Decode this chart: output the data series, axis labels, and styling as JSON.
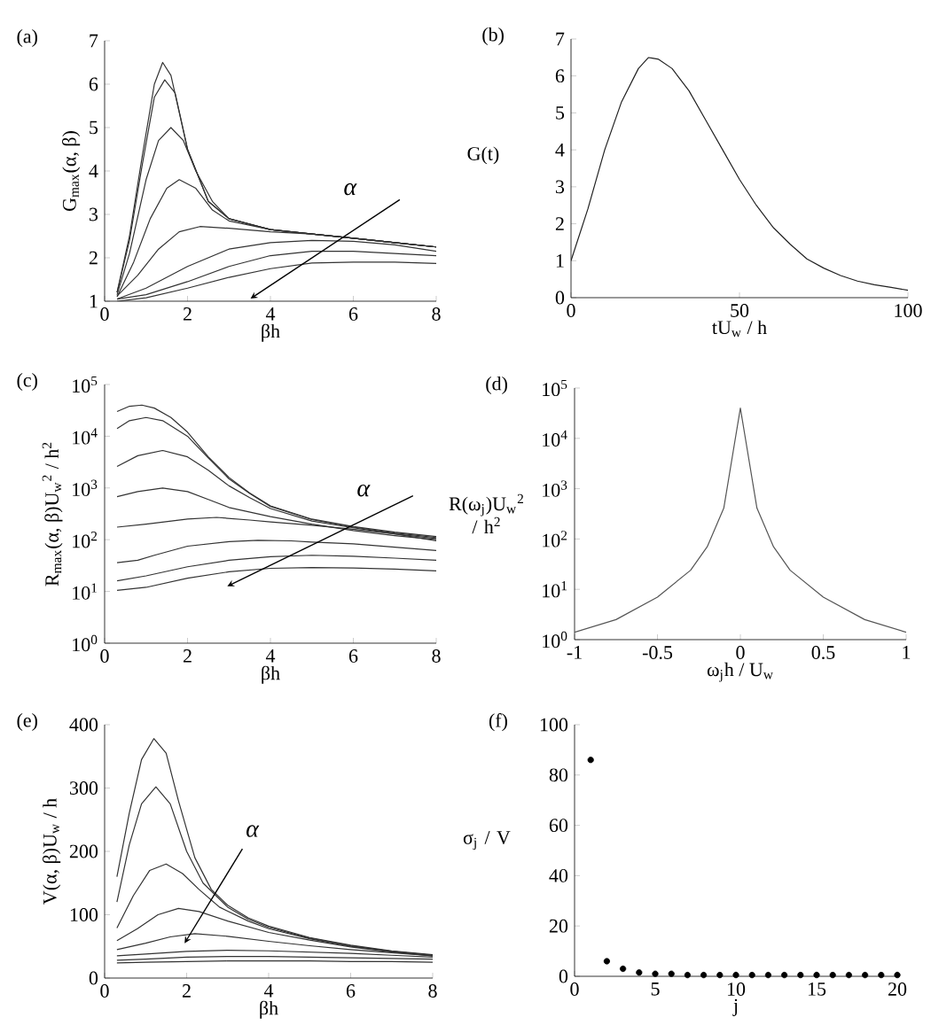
{
  "chart_data": [
    {
      "type": "line",
      "title": "(a)",
      "xlabel": "βh",
      "ylabel": "G$_{max}$(α, β)",
      "xlim": [
        0,
        8
      ],
      "ylim": [
        1,
        7
      ],
      "xticks": [
        0,
        2,
        4,
        6,
        8
      ],
      "yticks": [
        1,
        2,
        3,
        4,
        5,
        6,
        7
      ],
      "annotations": [
        "α"
      ],
      "series": [
        {
          "color": "#333333",
          "x": [
            0.3,
            0.6,
            0.9,
            1.2,
            1.4,
            1.6,
            2.0,
            2.5,
            3,
            4,
            5,
            6,
            7,
            8
          ],
          "values": [
            1.2,
            2.5,
            4.3,
            6.0,
            6.5,
            6.2,
            4.5,
            3.3,
            2.9,
            2.65,
            2.55,
            2.45,
            2.35,
            2.25
          ]
        },
        {
          "color": "#333333",
          "x": [
            0.3,
            0.6,
            0.9,
            1.2,
            1.45,
            1.7,
            2.0,
            2.5,
            3,
            4,
            5,
            6,
            7,
            8
          ],
          "values": [
            1.2,
            2.4,
            4.1,
            5.7,
            6.1,
            5.8,
            4.5,
            3.3,
            2.9,
            2.65,
            2.55,
            2.45,
            2.35,
            2.25
          ]
        },
        {
          "color": "#333333",
          "x": [
            0.3,
            0.6,
            1.0,
            1.3,
            1.6,
            1.9,
            2.2,
            2.6,
            3,
            4,
            5,
            6,
            7,
            8
          ],
          "values": [
            1.15,
            2.1,
            3.8,
            4.7,
            5.0,
            4.7,
            4.0,
            3.3,
            2.9,
            2.65,
            2.55,
            2.45,
            2.35,
            2.25
          ]
        },
        {
          "color": "#333333",
          "x": [
            0.3,
            0.7,
            1.1,
            1.5,
            1.8,
            2.2,
            2.6,
            3,
            4,
            5,
            6,
            7,
            8
          ],
          "values": [
            1.1,
            1.9,
            2.9,
            3.6,
            3.8,
            3.6,
            3.1,
            2.85,
            2.65,
            2.55,
            2.45,
            2.35,
            2.25
          ]
        },
        {
          "color": "#333333",
          "x": [
            0.3,
            0.8,
            1.3,
            1.8,
            2.3,
            3,
            4,
            5,
            6,
            7,
            8
          ],
          "values": [
            1.12,
            1.6,
            2.2,
            2.6,
            2.72,
            2.68,
            2.6,
            2.55,
            2.45,
            2.35,
            2.25
          ]
        },
        {
          "color": "#333333",
          "x": [
            0.3,
            1,
            2,
            3,
            4,
            5,
            6,
            7,
            8
          ],
          "values": [
            1.05,
            1.3,
            1.8,
            2.2,
            2.35,
            2.4,
            2.38,
            2.3,
            2.15
          ]
        },
        {
          "color": "#333333",
          "x": [
            0.3,
            1,
            2,
            3,
            4,
            5,
            6,
            7,
            8
          ],
          "values": [
            1.05,
            1.15,
            1.45,
            1.8,
            2.05,
            2.15,
            2.15,
            2.1,
            2.05
          ]
        },
        {
          "color": "#333333",
          "x": [
            0.3,
            1,
            2,
            3,
            4,
            5,
            6,
            7,
            8
          ],
          "values": [
            1.0,
            1.08,
            1.3,
            1.55,
            1.75,
            1.88,
            1.9,
            1.9,
            1.87
          ]
        }
      ]
    },
    {
      "type": "line",
      "title": "(b)",
      "xlabel": "tU$_{w}$ / h",
      "ylabel": "G(t)",
      "xlim": [
        0,
        100
      ],
      "ylim": [
        0,
        7
      ],
      "xticks": [
        0,
        50,
        100
      ],
      "yticks": [
        0,
        1,
        2,
        3,
        4,
        5,
        6,
        7
      ],
      "series": [
        {
          "color": "#222222",
          "x": [
            0,
            5,
            10,
            15,
            20,
            23,
            26,
            30,
            35,
            40,
            45,
            50,
            55,
            60,
            65,
            70,
            75,
            80,
            85,
            90,
            95,
            100
          ],
          "values": [
            1.0,
            2.4,
            4.0,
            5.3,
            6.2,
            6.5,
            6.45,
            6.2,
            5.6,
            4.8,
            4.0,
            3.2,
            2.5,
            1.9,
            1.45,
            1.05,
            0.8,
            0.6,
            0.45,
            0.35,
            0.28,
            0.2
          ]
        }
      ]
    },
    {
      "type": "line",
      "title": "(c)",
      "xlabel": "βh",
      "ylabel": "R$_{max}$(α, β)U$_{w}$$^{2}$ / h$^{2}$",
      "log": "y",
      "xlim": [
        0,
        8
      ],
      "ylim": [
        1,
        100000
      ],
      "xticks": [
        0,
        2,
        4,
        6,
        8
      ],
      "yticks": [
        {
          "value": 1,
          "label": "10$^{0}$"
        },
        {
          "value": 10,
          "label": "10$^{1}$"
        },
        {
          "value": 100,
          "label": "10$^{2}$"
        },
        {
          "value": 1000,
          "label": "10$^{3}$"
        },
        {
          "value": 10000,
          "label": "10$^{4}$"
        },
        {
          "value": 100000,
          "label": "10$^{5}$"
        }
      ],
      "annotations": [
        "α"
      ],
      "series": [
        {
          "color": "#333333",
          "x": [
            0.3,
            0.6,
            0.9,
            1.2,
            1.6,
            2,
            2.5,
            3,
            3.5,
            4,
            5,
            6,
            7,
            8
          ],
          "values": [
            30000,
            38000,
            40000,
            35000,
            23000,
            12000,
            4000,
            1600,
            800,
            450,
            250,
            180,
            140,
            115
          ]
        },
        {
          "color": "#333333",
          "x": [
            0.3,
            0.6,
            1,
            1.4,
            2,
            2.5,
            3,
            3.5,
            4,
            5,
            6,
            7,
            8
          ],
          "values": [
            14000,
            20000,
            23000,
            20000,
            10000,
            3800,
            1500,
            780,
            440,
            245,
            175,
            135,
            110
          ]
        },
        {
          "color": "#333333",
          "x": [
            0.3,
            0.8,
            1.4,
            2,
            2.5,
            3,
            3.5,
            4,
            5,
            6,
            7,
            8
          ],
          "values": [
            2600,
            4200,
            5300,
            4000,
            2200,
            1100,
            650,
            400,
            230,
            170,
            130,
            105
          ]
        },
        {
          "color": "#333333",
          "x": [
            0.3,
            0.8,
            1.4,
            2,
            2.5,
            3,
            4,
            5,
            6,
            7,
            8
          ],
          "values": [
            680,
            850,
            1000,
            850,
            600,
            420,
            280,
            200,
            150,
            120,
            100
          ]
        },
        {
          "color": "#333333",
          "x": [
            0.3,
            1,
            2,
            2.7,
            3.5,
            4,
            5,
            6,
            7,
            8
          ],
          "values": [
            175,
            200,
            250,
            270,
            240,
            220,
            190,
            160,
            130,
            95
          ]
        },
        {
          "color": "#333333",
          "x": [
            0.3,
            0.8,
            1.2,
            2,
            3,
            3.7,
            4.5,
            5,
            6,
            7,
            8
          ],
          "values": [
            36,
            40,
            50,
            75,
            92,
            97,
            95,
            90,
            83,
            72,
            62
          ]
        },
        {
          "color": "#333333",
          "x": [
            0.3,
            1,
            2,
            3,
            4,
            5,
            6,
            7,
            8
          ],
          "values": [
            16,
            20,
            30,
            40,
            47,
            50,
            48,
            44,
            40
          ]
        },
        {
          "color": "#333333",
          "x": [
            0.3,
            1,
            2,
            3,
            4,
            5,
            6,
            7,
            8
          ],
          "values": [
            10.5,
            12,
            18,
            24,
            28,
            29,
            28.5,
            27,
            25
          ]
        }
      ]
    },
    {
      "type": "line",
      "title": "(d)",
      "xlabel": "ω$_{j}$h / U$_{w}$",
      "ylabel": "R(ω$_{j}$)U$_{w}$$^{2}$ / h$^{2}$",
      "log": "y",
      "xlim": [
        -1,
        1
      ],
      "ylim": [
        1,
        100000
      ],
      "xticks": [
        -1,
        -0.5,
        0,
        0.5,
        1
      ],
      "yticks": [
        {
          "value": 1,
          "label": "10$^{0}$"
        },
        {
          "value": 10,
          "label": "10$^{1}$"
        },
        {
          "value": 100,
          "label": "10$^{2}$"
        },
        {
          "value": 1000,
          "label": "10$^{3}$"
        },
        {
          "value": 10000,
          "label": "10$^{4}$"
        },
        {
          "value": 100000,
          "label": "10$^{5}$"
        }
      ],
      "series": [
        {
          "color": "#555555",
          "x": [
            -1,
            -0.75,
            -0.5,
            -0.3,
            -0.2,
            -0.1,
            0,
            0.1,
            0.2,
            0.3,
            0.5,
            0.75,
            1
          ],
          "values": [
            1.4,
            2.5,
            7,
            24,
            70,
            410,
            40000,
            410,
            70,
            24,
            7,
            2.5,
            1.4
          ]
        }
      ]
    },
    {
      "type": "line",
      "title": "(e)",
      "xlabel": "βh",
      "ylabel": "V(α, β)U$_{w}$ / h",
      "xlim": [
        0,
        8
      ],
      "ylim": [
        0,
        400
      ],
      "xticks": [
        0,
        2,
        4,
        6,
        8
      ],
      "yticks": [
        0,
        100,
        200,
        300,
        400
      ],
      "annotations": [
        {
          "text": "α",
          "x": 1.95,
          "y": 55
        }
      ],
      "series": [
        {
          "color": "#333333",
          "x": [
            0.3,
            0.6,
            0.9,
            1.2,
            1.5,
            1.8,
            2.2,
            2.6,
            3,
            3.5,
            4,
            5,
            6,
            7,
            8
          ],
          "values": [
            160,
            260,
            345,
            378,
            355,
            280,
            190,
            140,
            115,
            95,
            82,
            64,
            52,
            43,
            37
          ]
        },
        {
          "color": "#333333",
          "x": [
            0.3,
            0.6,
            0.9,
            1.25,
            1.6,
            2,
            2.4,
            3,
            3.5,
            4,
            5,
            6,
            7,
            8
          ],
          "values": [
            120,
            210,
            275,
            302,
            275,
            200,
            150,
            112,
            93,
            80,
            63,
            51,
            42,
            36
          ]
        },
        {
          "color": "#333333",
          "x": [
            0.3,
            0.7,
            1.1,
            1.5,
            1.9,
            2.3,
            2.8,
            3.5,
            4,
            5,
            6,
            7,
            8
          ],
          "values": [
            79,
            130,
            170,
            180,
            165,
            140,
            112,
            90,
            78,
            62,
            50,
            42,
            36
          ]
        },
        {
          "color": "#333333",
          "x": [
            0.3,
            0.8,
            1.3,
            1.8,
            2.3,
            3,
            4,
            5,
            6,
            7,
            8
          ],
          "values": [
            59,
            78,
            100,
            110,
            105,
            90,
            72,
            60,
            49,
            41,
            35
          ]
        },
        {
          "color": "#333333",
          "x": [
            0.3,
            1,
            1.6,
            2.2,
            3,
            4,
            5,
            6,
            7,
            8
          ],
          "values": [
            45,
            55,
            65,
            70,
            66,
            58,
            51,
            45,
            40,
            35
          ]
        },
        {
          "color": "#333333",
          "x": [
            0.3,
            1,
            2,
            3,
            4,
            5,
            6,
            7,
            8
          ],
          "values": [
            35,
            38,
            42,
            44,
            43,
            41,
            39,
            36,
            33
          ]
        },
        {
          "color": "#333333",
          "x": [
            0.3,
            1,
            2,
            3,
            4,
            5,
            6,
            7,
            8
          ],
          "values": [
            28,
            30,
            33,
            34,
            34,
            33,
            32,
            31,
            30
          ]
        },
        {
          "color": "#333333",
          "x": [
            0.3,
            1,
            2,
            3,
            4,
            5,
            6,
            7,
            8
          ],
          "values": [
            24,
            25,
            26,
            27,
            27,
            27,
            26,
            26,
            25
          ]
        }
      ]
    },
    {
      "type": "scatter",
      "title": "(f)",
      "xlabel": "j",
      "ylabel": "σ$_{j}$ / V",
      "marker": "circle",
      "xlim": [
        0,
        20
      ],
      "ylim": [
        0,
        100
      ],
      "xticks": [
        0,
        5,
        10,
        15,
        20
      ],
      "yticks": [
        0,
        20,
        40,
        60,
        80,
        100
      ],
      "series": [
        {
          "color": "#000000",
          "x": [
            1,
            2,
            3,
            4,
            5,
            6,
            7,
            8,
            9,
            10,
            11,
            12,
            13,
            14,
            15,
            16,
            17,
            18,
            19,
            20
          ],
          "values": [
            86,
            6,
            3,
            1.5,
            1,
            1,
            0.5,
            0.5,
            0.5,
            0.5,
            0.5,
            0.5,
            0.5,
            0.5,
            0.5,
            0.5,
            0.5,
            0.5,
            0.5,
            0.5
          ]
        }
      ]
    }
  ]
}
